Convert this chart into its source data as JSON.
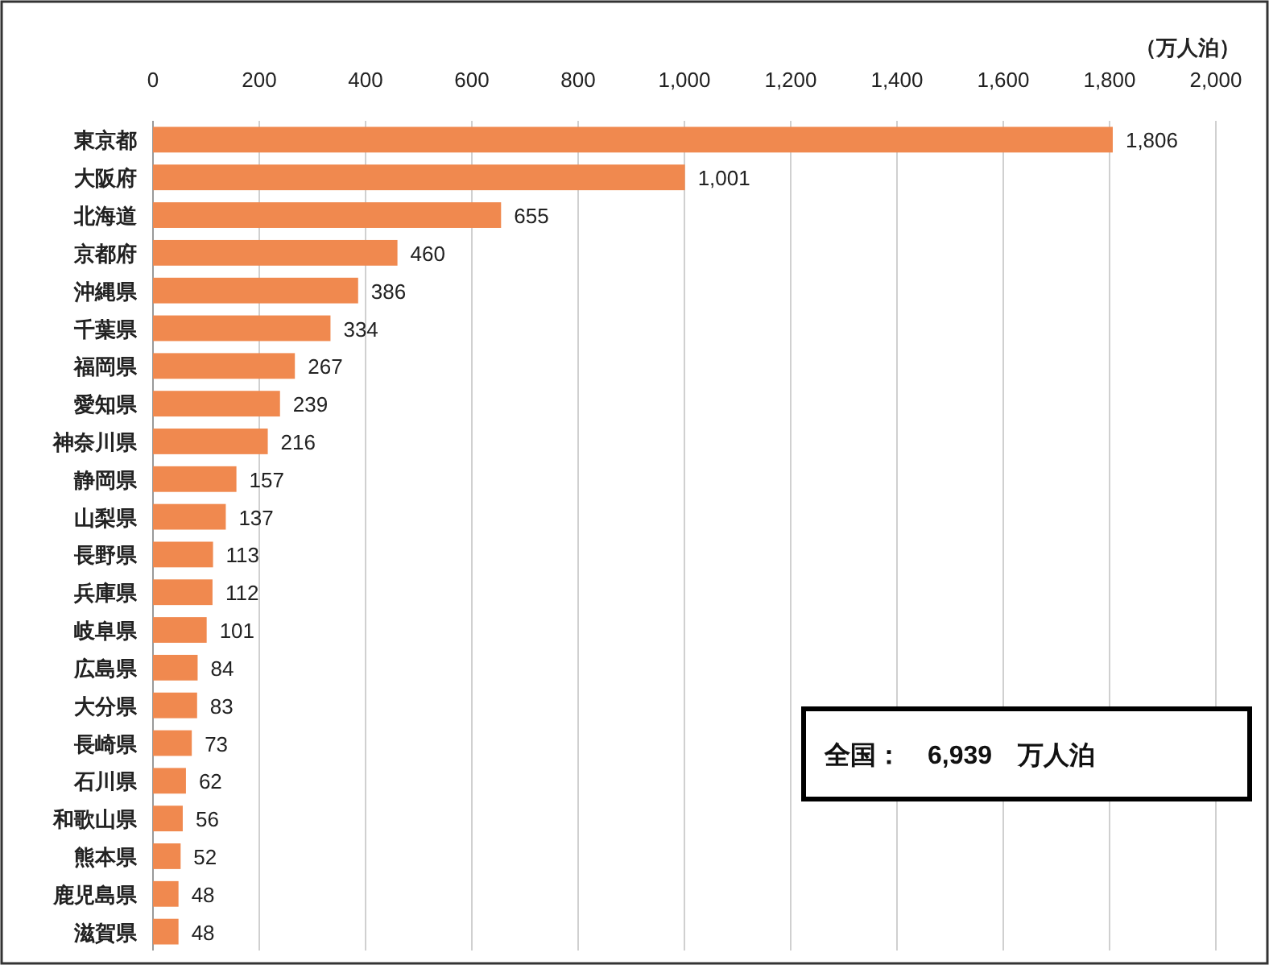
{
  "chart_data": {
    "type": "bar",
    "orientation": "horizontal",
    "xlabel": "（万人泊）",
    "categories": [
      "東京都",
      "大阪府",
      "北海道",
      "京都府",
      "沖縄県",
      "千葉県",
      "福岡県",
      "愛知県",
      "神奈川県",
      "静岡県",
      "山梨県",
      "長野県",
      "兵庫県",
      "岐阜県",
      "広島県",
      "大分県",
      "長崎県",
      "石川県",
      "和歌山県",
      "熊本県",
      "鹿児島県",
      "滋賀県"
    ],
    "values": [
      1806,
      1001,
      655,
      460,
      386,
      334,
      267,
      239,
      216,
      157,
      137,
      113,
      112,
      101,
      84,
      83,
      73,
      62,
      56,
      52,
      48,
      48
    ],
    "value_labels": [
      "1,806",
      "1,001",
      "655",
      "460",
      "386",
      "334",
      "267",
      "239",
      "216",
      "157",
      "137",
      "113",
      "112",
      "101",
      "84",
      "83",
      "73",
      "62",
      "56",
      "52",
      "48",
      "48"
    ],
    "color": "#f0894f",
    "xlim": [
      0,
      2000
    ],
    "xticks": [
      0,
      200,
      400,
      600,
      800,
      {
        "value": 1000,
        "label": "1,000"
      },
      {
        "value": 1200,
        "label": "1,200"
      },
      {
        "value": 1400,
        "label": "1,400"
      },
      {
        "value": 1600,
        "label": "1,600"
      },
      {
        "value": 1800,
        "label": "1,800"
      },
      {
        "value": 2000,
        "label": "2,000"
      }
    ],
    "grid": "x",
    "annotations": [
      "全国：　6,939　万人泊"
    ]
  }
}
